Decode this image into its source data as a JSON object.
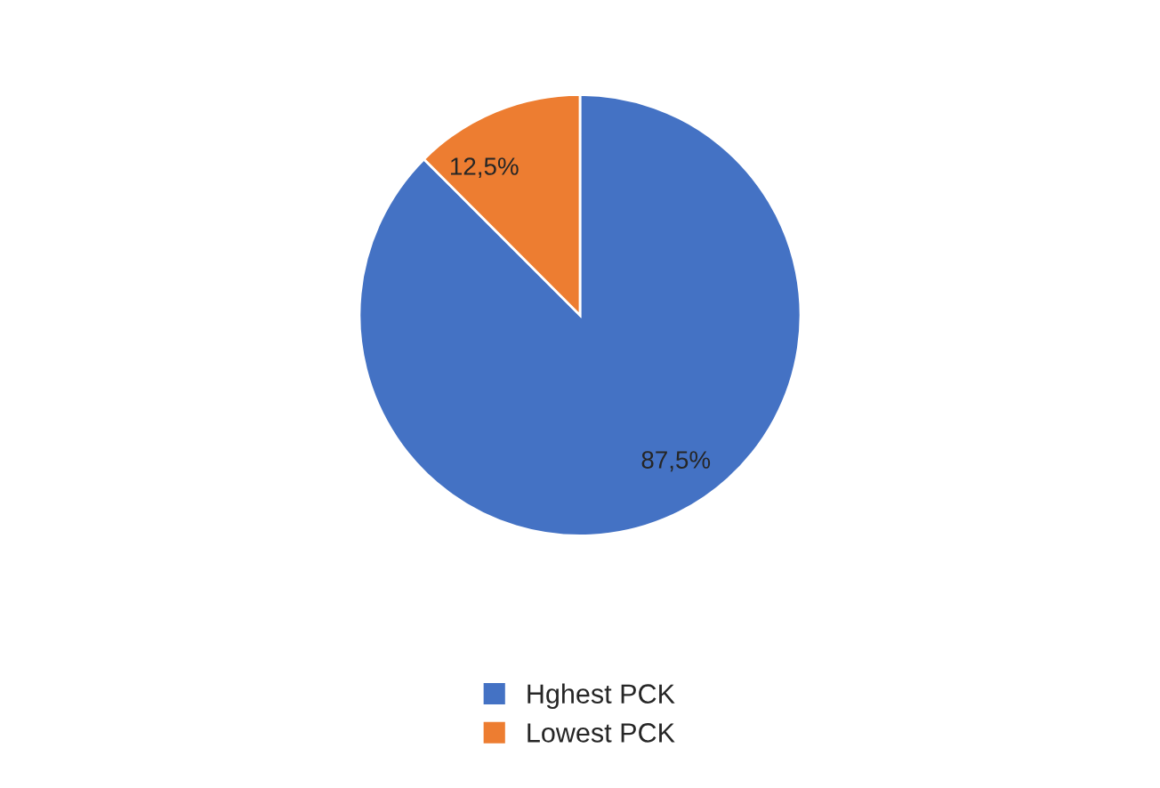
{
  "chart_data": {
    "type": "pie",
    "categories": [
      "Hghest PCK",
      "Lowest PCK"
    ],
    "values": [
      87.5,
      12.5
    ],
    "colors": [
      "#4472c4",
      "#ed7d31"
    ],
    "value_labels": [
      "87,5%",
      "12,5%"
    ],
    "legend": "bottom"
  }
}
